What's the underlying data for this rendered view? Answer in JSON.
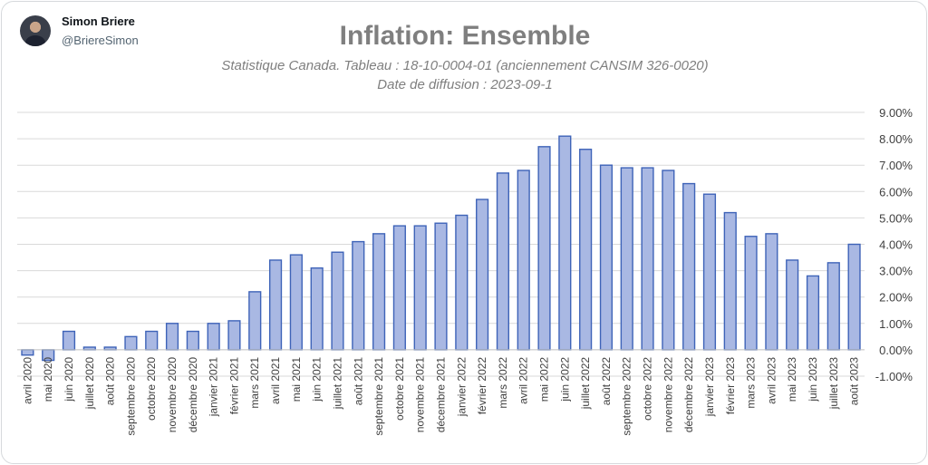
{
  "tweet": {
    "author_name": "Simon Briere",
    "author_handle": "@BriereSimon"
  },
  "colors": {
    "bar_fill": "#a9b8e3",
    "bar_stroke": "#3e63b8",
    "title": "#7f7f7f"
  },
  "chart_data": {
    "type": "bar",
    "title": "Inflation: Ensemble",
    "subtitle": "Statistique Canada. Tableau : 18-10-0004-01 (anciennement CANSIM 326-0020)",
    "subtitle2": "Date de diffusion : 2023-09-1",
    "xlabel": "",
    "ylabel": "",
    "ylim": [
      -1,
      9
    ],
    "yticks": [
      "9.00%",
      "8.00%",
      "7.00%",
      "6.00%",
      "5.00%",
      "4.00%",
      "3.00%",
      "2.00%",
      "1.00%",
      "0.00%",
      "-1.00%"
    ],
    "ytick_values": [
      9,
      8,
      7,
      6,
      5,
      4,
      3,
      2,
      1,
      0,
      -1
    ],
    "grid": true,
    "legend": "none",
    "categories": [
      "avril 2020",
      "mai 2020",
      "juin 2020",
      "juillet 2020",
      "août 2020",
      "septembre 2020",
      "octobre 2020",
      "novembre 2020",
      "décembre 2020",
      "janvier 2021",
      "février 2021",
      "mars 2021",
      "avril 2021",
      "mai 2021",
      "juin 2021",
      "juillet 2021",
      "août 2021",
      "septembre 2021",
      "octobre 2021",
      "novembre 2021",
      "décembre 2021",
      "janvier 2022",
      "février 2022",
      "mars 2022",
      "avril 2022",
      "mai 2022",
      "juin 2022",
      "juillet 2022",
      "août 2022",
      "septembre 2022",
      "octobre 2022",
      "novembre 2022",
      "décembre 2022",
      "janvier 2023",
      "février 2023",
      "mars 2023",
      "avril 2023",
      "mai 2023",
      "juin 2023",
      "juillet 2023",
      "août 2023"
    ],
    "values": [
      -0.2,
      -0.4,
      0.7,
      0.1,
      0.1,
      0.5,
      0.7,
      1.0,
      0.7,
      1.0,
      1.1,
      2.2,
      3.4,
      3.6,
      3.1,
      3.7,
      4.1,
      4.4,
      4.7,
      4.7,
      4.8,
      5.1,
      5.7,
      6.7,
      6.8,
      7.7,
      8.1,
      7.6,
      7.0,
      6.9,
      6.9,
      6.8,
      6.3,
      5.9,
      5.2,
      4.3,
      4.4,
      3.4,
      2.8,
      3.3,
      4.0
    ]
  }
}
